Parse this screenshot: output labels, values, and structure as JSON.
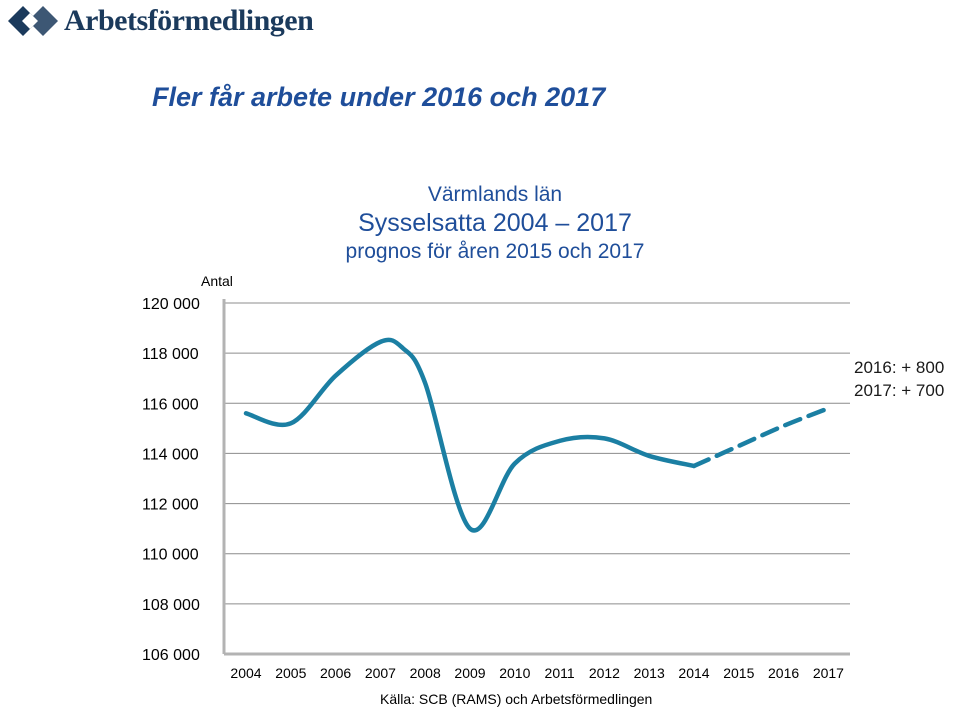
{
  "logo": {
    "text": "Arbetsförmedlingen",
    "mark_icon": "arbetsformedlingen-logo-icon",
    "color": "#1b3a5c"
  },
  "slide_title": "Fler får arbete under 2016 och 2017",
  "chart_heading": {
    "line1": "Värmlands län",
    "line2": "Sysselsatta 2004 – 2017",
    "line3": "prognos för åren 2015 och 2017"
  },
  "annotations": [
    "2016: + 800",
    "2017: + 700"
  ],
  "chart_data": {
    "type": "line",
    "ylabel": "Antal",
    "xlabel": "",
    "source": "Källa: SCB (RAMS) och Arbetsförmedlingen",
    "ylim": [
      106000,
      120000
    ],
    "yticks": [
      {
        "value": 120000,
        "label": "120 000"
      },
      {
        "value": 118000,
        "label": "118 000"
      },
      {
        "value": 116000,
        "label": "116 000"
      },
      {
        "value": 114000,
        "label": "114 000"
      },
      {
        "value": 112000,
        "label": "112 000"
      },
      {
        "value": 110000,
        "label": "110 000"
      },
      {
        "value": 108000,
        "label": "108 000"
      },
      {
        "value": 106000,
        "label": "106 000"
      }
    ],
    "categories": [
      "2004",
      "2005",
      "2006",
      "2007",
      "2008",
      "2009",
      "2010",
      "2011",
      "2012",
      "2013",
      "2014",
      "2015",
      "2016",
      "2017"
    ],
    "series": [
      {
        "style": "solid",
        "color": "#1b7fa3",
        "x": [
          2004,
          2005,
          2006,
          2007,
          2007.5,
          2008,
          2009,
          2010,
          2011,
          2012,
          2013,
          2014
        ],
        "y": [
          115600,
          115200,
          117100,
          118450,
          118200,
          116800,
          111000,
          113600,
          114500,
          114600,
          113900,
          113500
        ]
      },
      {
        "style": "dashed",
        "color": "#1b7fa3",
        "x": [
          2014,
          2015,
          2016,
          2017
        ],
        "y": [
          113500,
          114300,
          115100,
          115800
        ]
      }
    ],
    "grid": "horizontal"
  }
}
